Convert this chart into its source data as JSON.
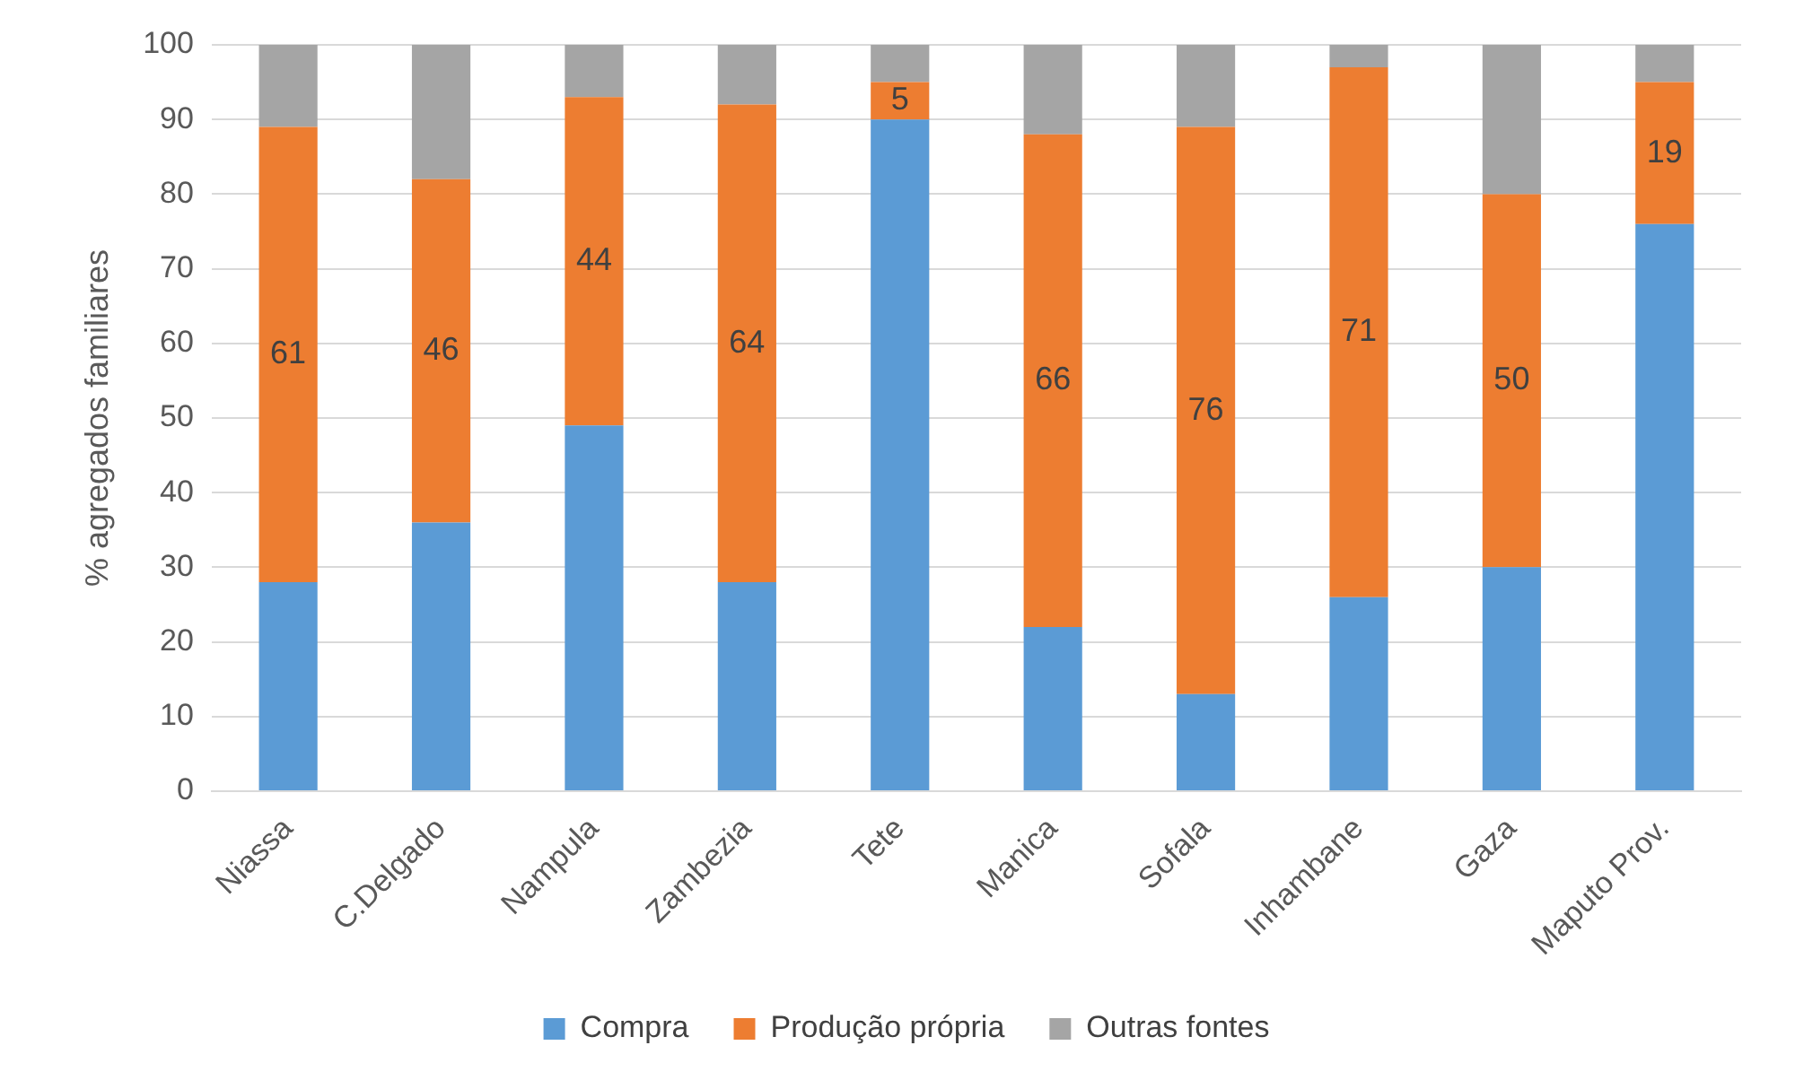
{
  "chart_data": {
    "type": "bar",
    "stacked": true,
    "ylabel": "% agregados familiares",
    "categories": [
      "Niassa",
      "C.Delgado",
      "Nampula",
      "Zambezia",
      "Tete",
      "Manica",
      "Sofala",
      "Inhambane",
      "Gaza",
      "Maputo Prov."
    ],
    "series": [
      {
        "name": "Compra",
        "color": "#5b9bd5",
        "values": [
          28,
          36,
          49,
          28,
          90,
          22,
          13,
          26,
          30,
          76
        ]
      },
      {
        "name": "Produção própria",
        "color": "#ed7d31",
        "values": [
          61,
          46,
          44,
          64,
          5,
          66,
          76,
          71,
          50,
          19
        ],
        "value_labels": [
          "61",
          "46",
          "44",
          "64",
          "5",
          "66",
          "76",
          "71",
          "50",
          "19"
        ]
      },
      {
        "name": "Outras fontes",
        "color": "#a5a5a5",
        "values": [
          11,
          18,
          7,
          8,
          5,
          12,
          11,
          3,
          20,
          5
        ]
      }
    ],
    "ylim": [
      0,
      100
    ],
    "yticks": [
      0,
      10,
      20,
      30,
      40,
      50,
      60,
      70,
      80,
      90,
      100
    ],
    "grid": "y",
    "legend": "bottom"
  }
}
